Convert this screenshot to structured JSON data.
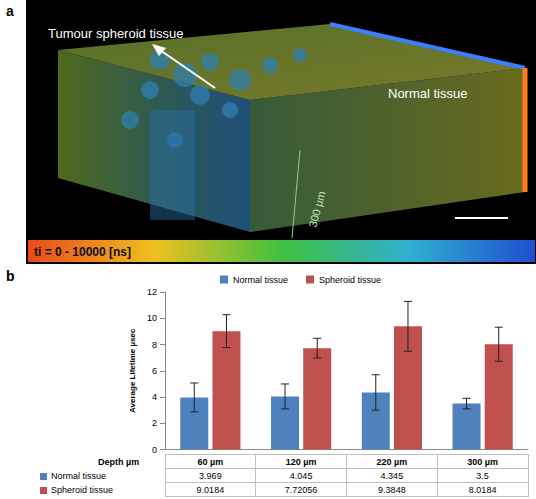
{
  "panel_a": {
    "letter": "a",
    "arrow_label": "Tumour spheroid tissue",
    "side_label": "Normal tissue",
    "scale_label": "300 µm",
    "colorbar_label": "ti = 0 - 10000 [ns]"
  },
  "panel_b": {
    "letter": "b"
  },
  "chart_data": {
    "type": "bar",
    "categories": [
      "60 µm",
      "120 µm",
      "220 µm",
      "300 µm"
    ],
    "x_label": "Depth µm",
    "y_label": "Average Lifetime µsec",
    "series": [
      {
        "name": "Normal tissue",
        "color": "#4f81bd",
        "values": [
          3.969,
          4.045,
          4.345,
          3.5
        ],
        "errors": [
          1.1,
          0.95,
          1.35,
          0.4
        ]
      },
      {
        "name": "Spheroid tissue",
        "color": "#c0504d",
        "values": [
          9.0184,
          7.72056,
          9.3848,
          8.0184
        ],
        "errors": [
          1.25,
          0.75,
          1.9,
          1.3
        ]
      }
    ],
    "ylim": [
      0,
      12
    ],
    "yticks": [
      0,
      2,
      4,
      6,
      8,
      10,
      12
    ],
    "grid": false,
    "legend": "top"
  }
}
